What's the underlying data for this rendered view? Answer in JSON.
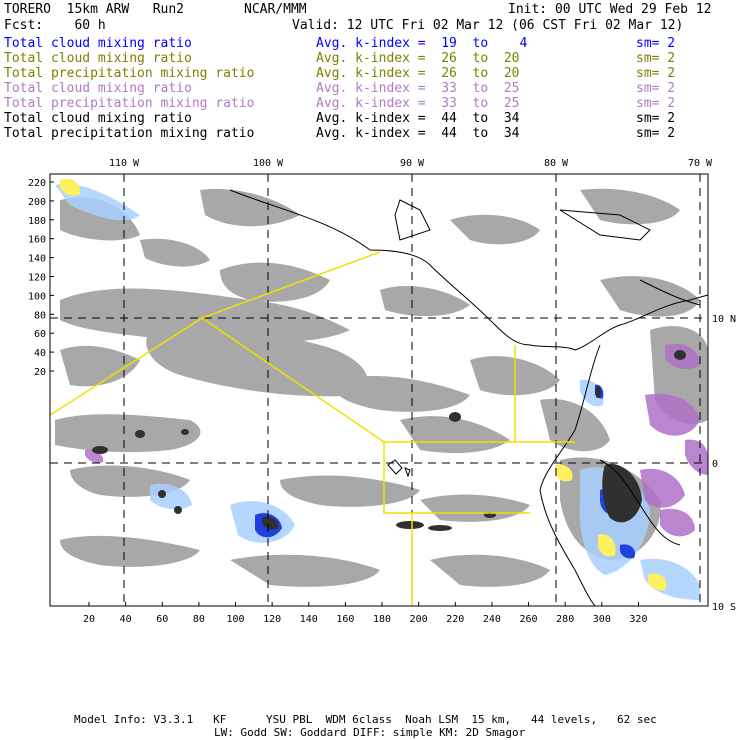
{
  "header": {
    "model": "TORERO  15km ARW   Run2",
    "org": "NCAR/MMM",
    "init": "Init: 00 UTC Wed 29 Feb 12",
    "fcst": "Fcst:    60 h",
    "valid": "Valid: 12 UTC Fri 02 Mar 12 (06 CST Fri 02 Mar 12)"
  },
  "legend": [
    {
      "field": "Total cloud mixing ratio",
      "kidx": "Avg. k-index =  19  to    4",
      "sm": "sm= 2",
      "color": "#0000ff"
    },
    {
      "field": "Total cloud mixing ratio",
      "kidx": "Avg. k-index =  26  to  20",
      "sm": "sm= 2",
      "color": "#808000"
    },
    {
      "field": "Total precipitation mixing ratio",
      "kidx": "Avg. k-index =  26  to  20",
      "sm": "sm= 2",
      "color": "#808000"
    },
    {
      "field": "Total cloud mixing ratio",
      "kidx": "Avg. k-index =  33  to  25",
      "sm": "sm= 2",
      "color": "#b07ac8"
    },
    {
      "field": "Total precipitation mixing ratio",
      "kidx": "Avg. k-index =  33  to  25",
      "sm": "sm= 2",
      "color": "#b07ac8"
    },
    {
      "field": "Total cloud mixing ratio",
      "kidx": "Avg. k-index =  44  to  34",
      "sm": "sm= 2",
      "color": "#000000"
    },
    {
      "field": "Total precipitation mixing ratio",
      "kidx": "Avg. k-index =  44  to  34",
      "sm": "sm= 2",
      "color": "#000000"
    }
  ],
  "axes": {
    "top_lon": [
      "110 W",
      "100 W",
      "90 W",
      "80 W",
      "70 W"
    ],
    "right_lat": [
      "10 N",
      "0",
      "10 S"
    ],
    "left_y": [
      "220",
      "200",
      "180",
      "160",
      "140",
      "120",
      "100",
      "80",
      "60",
      "40",
      "20"
    ],
    "bottom_x": [
      "20",
      "40",
      "60",
      "80",
      "100",
      "120",
      "140",
      "160",
      "180",
      "200",
      "220",
      "240",
      "260",
      "280",
      "300",
      "320"
    ]
  },
  "footer": {
    "line1": "Model Info: V3.3.1   KF      YSU PBL  WDM 6class  Noah LSM  15 km,   44 levels,   62 sec",
    "line2": "LW: Godd SW: Goddard DIFF: simple KM: 2D Smagor"
  },
  "colors": {
    "cloud_gray": "#a8a8a8",
    "dark": "#303030",
    "blue": "#2040e0",
    "light_blue": "#a8d0ff",
    "purple": "#b070c8",
    "yellow_box": "#f0e000",
    "yellow_fill": "#fff060"
  }
}
